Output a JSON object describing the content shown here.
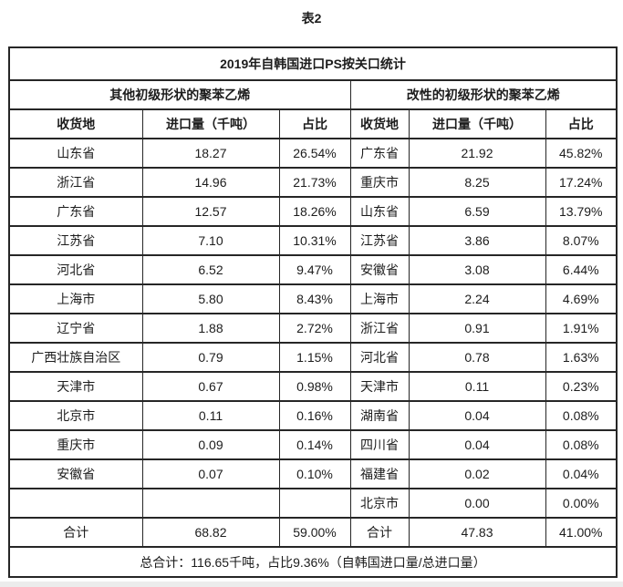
{
  "page_title": "表2",
  "table": {
    "title": "2019年自韩国进口PS按关口统计",
    "sections": [
      {
        "label": "其他初级形状的聚苯乙烯"
      },
      {
        "label": "改性的初级形状的聚苯乙烯"
      }
    ],
    "column_headers": [
      "收货地",
      "进口量（千吨）",
      "占比",
      "收货地",
      "进口量（千吨）",
      "占比"
    ],
    "rows": [
      [
        "山东省",
        "18.27",
        "26.54%",
        "广东省",
        "21.92",
        "45.82%"
      ],
      [
        "浙江省",
        "14.96",
        "21.73%",
        "重庆市",
        "8.25",
        "17.24%"
      ],
      [
        "广东省",
        "12.57",
        "18.26%",
        "山东省",
        "6.59",
        "13.79%"
      ],
      [
        "江苏省",
        "7.10",
        "10.31%",
        "江苏省",
        "3.86",
        "8.07%"
      ],
      [
        "河北省",
        "6.52",
        "9.47%",
        "安徽省",
        "3.08",
        "6.44%"
      ],
      [
        "上海市",
        "5.80",
        "8.43%",
        "上海市",
        "2.24",
        "4.69%"
      ],
      [
        "辽宁省",
        "1.88",
        "2.72%",
        "浙江省",
        "0.91",
        "1.91%"
      ],
      [
        "广西壮族自治区",
        "0.79",
        "1.15%",
        "河北省",
        "0.78",
        "1.63%"
      ],
      [
        "天津市",
        "0.67",
        "0.98%",
        "天津市",
        "0.11",
        "0.23%"
      ],
      [
        "北京市",
        "0.11",
        "0.16%",
        "湖南省",
        "0.04",
        "0.08%"
      ],
      [
        "重庆市",
        "0.09",
        "0.14%",
        "四川省",
        "0.04",
        "0.08%"
      ],
      [
        "安徽省",
        "0.07",
        "0.10%",
        "福建省",
        "0.02",
        "0.04%"
      ],
      [
        "",
        "",
        "",
        "北京市",
        "0.00",
        "0.00%"
      ]
    ],
    "total_row": [
      "合计",
      "68.82",
      "59.00%",
      "合计",
      "47.83",
      "41.00%"
    ],
    "footer": "总合计：116.65千吨，占比9.36%（自韩国进口量/总进口量）"
  },
  "colors": {
    "border": "#262626",
    "text": "#1c1c1c",
    "background": "#ffffff",
    "bottom_strip": "#ececec"
  }
}
